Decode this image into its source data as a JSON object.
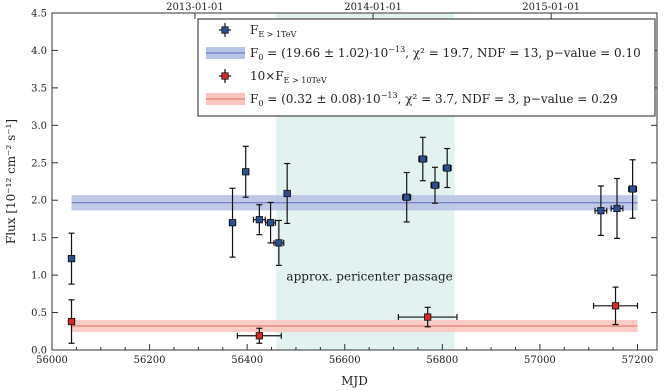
{
  "chart_data": {
    "type": "scatter",
    "title": "",
    "xlabel": "MJD",
    "ylabel": "Flux [10⁻¹² cm⁻² s⁻¹]",
    "xlim": [
      56000,
      57240
    ],
    "ylim": [
      0.0,
      4.5
    ],
    "x_ticks": [
      56000,
      56200,
      56400,
      56600,
      56800,
      57000,
      57200
    ],
    "y_ticks": [
      "0.0",
      "0.5",
      "1.0",
      "1.5",
      "2.0",
      "2.5",
      "3.0",
      "3.5",
      "4.0",
      "4.5"
    ],
    "top_axis": {
      "tick_dates": [
        "2013-01-01",
        "2014-01-01",
        "2015-01-01"
      ],
      "tick_mjd": [
        56293,
        56658,
        57023
      ]
    },
    "grid": false,
    "legend_position": "top-right",
    "shaded_region": {
      "x_start": 56460,
      "x_end": 56825,
      "label": "approx. pericenter passage",
      "color": "#e2f2f0"
    },
    "series": [
      {
        "name": "F_E>1TeV",
        "legend_main": "F",
        "legend_sub": "E > 1TeV",
        "color": "#2c4f8f",
        "points": [
          {
            "x": 56040,
            "y": 1.22,
            "xerr": 5,
            "yerr": 0.34
          },
          {
            "x": 56370,
            "y": 1.7,
            "xerr": 5,
            "yerr": 0.46
          },
          {
            "x": 56397,
            "y": 2.38,
            "xerr": 5,
            "yerr": 0.34
          },
          {
            "x": 56425,
            "y": 1.74,
            "xerr": 12,
            "yerr": 0.2
          },
          {
            "x": 56448,
            "y": 1.7,
            "xerr": 10,
            "yerr": 0.27
          },
          {
            "x": 56465,
            "y": 1.43,
            "xerr": 10,
            "yerr": 0.3
          },
          {
            "x": 56482,
            "y": 2.09,
            "xerr": 5,
            "yerr": 0.4
          },
          {
            "x": 56727,
            "y": 2.04,
            "xerr": 8,
            "yerr": 0.33
          },
          {
            "x": 56760,
            "y": 2.55,
            "xerr": 8,
            "yerr": 0.29
          },
          {
            "x": 56785,
            "y": 2.2,
            "xerr": 8,
            "yerr": 0.24
          },
          {
            "x": 56810,
            "y": 2.43,
            "xerr": 8,
            "yerr": 0.26
          },
          {
            "x": 57125,
            "y": 1.86,
            "xerr": 12,
            "yerr": 0.33
          },
          {
            "x": 57158,
            "y": 1.89,
            "xerr": 12,
            "yerr": 0.4
          },
          {
            "x": 57190,
            "y": 2.15,
            "xerr": 8,
            "yerr": 0.39
          }
        ],
        "fit": {
          "value": 1.966,
          "uncertainty": 0.102,
          "band_color": "#b9c3e6",
          "line_color": "#5a6fc0"
        }
      },
      {
        "name": "10×F_E>10TeV",
        "legend_main": "10×F",
        "legend_sub": "E > 10TeV",
        "color": "#d42a2a",
        "points": [
          {
            "x": 56040,
            "y": 0.38,
            "xerr": 5,
            "yerr": 0.29
          },
          {
            "x": 56425,
            "y": 0.19,
            "xerr": 45,
            "yerr": 0.1
          },
          {
            "x": 56770,
            "y": 0.44,
            "xerr": 60,
            "yerr": 0.13
          },
          {
            "x": 57155,
            "y": 0.59,
            "xerr": 45,
            "yerr": 0.25
          }
        ],
        "fit": {
          "value": 0.32,
          "uncertainty": 0.08,
          "band_color": "#f8c8c0",
          "line_color": "#e06a5a"
        }
      }
    ],
    "legend_entries": [
      {
        "kind": "marker",
        "series": 0
      },
      {
        "kind": "band",
        "series": 0,
        "text_main": "F",
        "text_sub": "0",
        "text_rest": " = (19.66 ± 1.02)·10",
        "text_exp": "−13",
        "text_tail": ", χ² = 19.7, NDF = 13, p−value = 0.10"
      },
      {
        "kind": "marker",
        "series": 1
      },
      {
        "kind": "band",
        "series": 1,
        "text_main": "F",
        "text_sub": "0",
        "text_rest": " = (0.32 ± 0.08)·10",
        "text_exp": "−13",
        "text_tail": ", χ² = 3.7, NDF = 3, p−value = 0.29"
      }
    ]
  }
}
